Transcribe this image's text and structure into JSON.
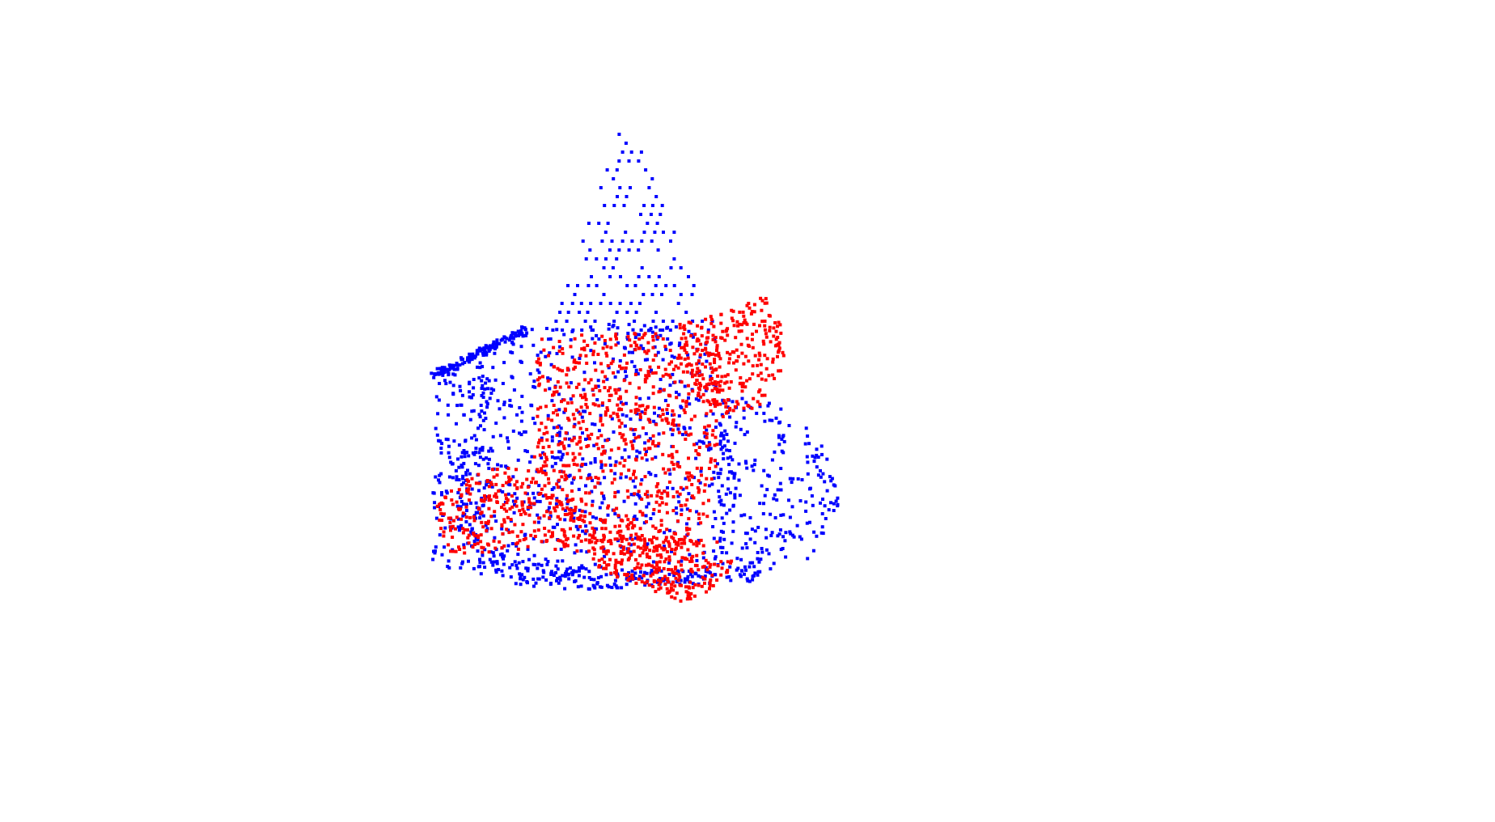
{
  "view": {
    "background_color": "#ffffff"
  },
  "point_clouds": [
    {
      "color": "#0000ff"
    },
    {
      "color": "#ff0000"
    }
  ]
}
